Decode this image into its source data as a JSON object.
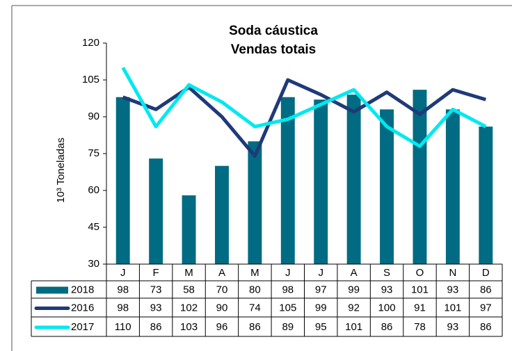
{
  "chart_data": {
    "type": "bar",
    "title": "Soda cáustica",
    "subtitle": "Vendas totais",
    "y_label": "10³ Toneladas",
    "categories": [
      "J",
      "F",
      "M",
      "A",
      "M",
      "J",
      "J",
      "A",
      "S",
      "O",
      "N",
      "D"
    ],
    "series": [
      {
        "name": "2018",
        "type": "bar",
        "color": "#006b82",
        "values": [
          98,
          73,
          58,
          70,
          80,
          98,
          97,
          99,
          93,
          101,
          93,
          86
        ]
      },
      {
        "name": "2016",
        "type": "line",
        "color": "#1f3a78",
        "values": [
          98,
          93,
          102,
          90,
          74,
          105,
          99,
          92,
          100,
          91,
          101,
          97
        ]
      },
      {
        "name": "2017",
        "type": "line",
        "color": "#00e8f0",
        "values": [
          110,
          86,
          103,
          96,
          86,
          89,
          95,
          101,
          86,
          78,
          93,
          86
        ]
      }
    ],
    "ylim": [
      30,
      120
    ],
    "yticks": [
      30,
      45,
      60,
      75,
      90,
      105,
      120
    ],
    "data_table": true
  }
}
